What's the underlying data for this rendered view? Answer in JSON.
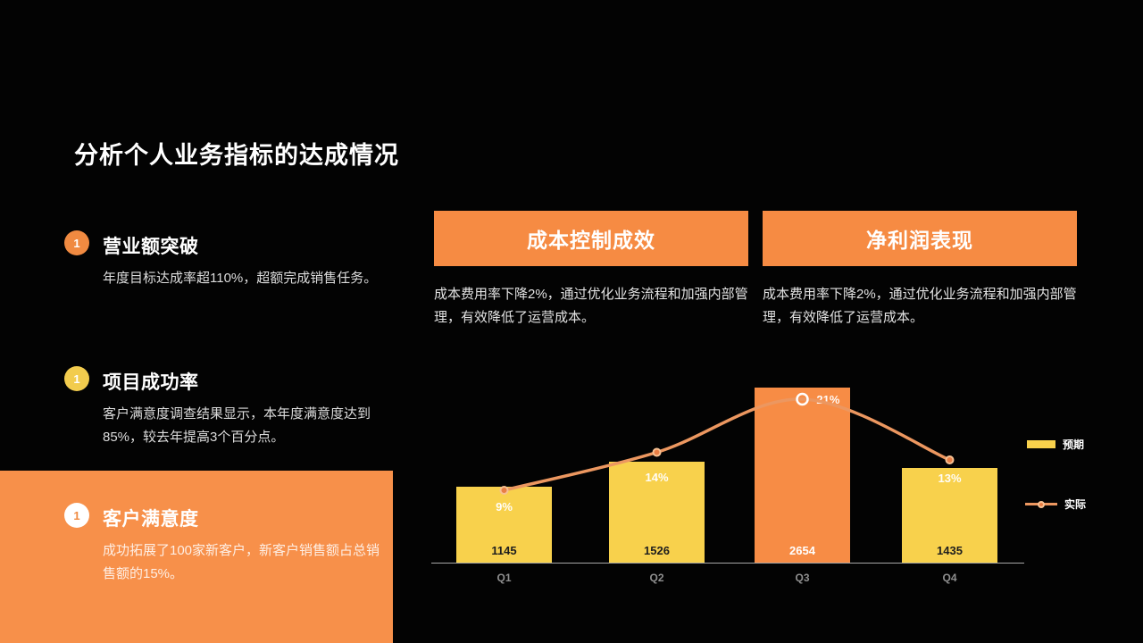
{
  "slide": {
    "title": "分析个人业务指标的达成情况"
  },
  "left_items": [
    {
      "num": "1",
      "title": "营业额突破",
      "body": "年度目标达成率超110%，超额完成销售任务。"
    },
    {
      "num": "1",
      "title": "项目成功率",
      "body": "客户满意度调查结果显示，本年度满意度达到85%，较去年提高3个百分点。"
    },
    {
      "num": "1",
      "title": "客户满意度",
      "body": "成功拓展了100家新客户，新客户销售额占总销售额的15%。"
    }
  ],
  "panels": [
    {
      "title": "成本控制成效",
      "desc": "成本费用率下降2%，通过优化业务流程和加强内部管理，有效降低了运营成本。"
    },
    {
      "title": "净利润表现",
      "desc": "成本费用率下降2%，通过优化业务流程和加强内部管理，有效降低了运营成本。"
    }
  ],
  "chart_data": {
    "type": "bar",
    "subtype": "bar-line-combo",
    "categories": [
      "Q1",
      "Q2",
      "Q3",
      "Q4"
    ],
    "series": [
      {
        "name": "预期",
        "type": "bar",
        "values": [
          1145,
          1526,
          2654,
          1435
        ]
      },
      {
        "name": "实际",
        "type": "line",
        "values": [
          9,
          14,
          21,
          13
        ],
        "unit": "%"
      }
    ],
    "bar_value_labels": [
      "1145",
      "1526",
      "2654",
      "1435"
    ],
    "line_point_labels": [
      "9%",
      "14%",
      "21%",
      "13%"
    ],
    "highlight_bar_index": 2,
    "legend": [
      {
        "label": "预期",
        "marker": "bar-swatch"
      },
      {
        "label": "实际",
        "marker": "line-dot"
      }
    ],
    "colors": {
      "bar": "#F8D14C",
      "bar_highlight": "#F78C45",
      "line": "#EC9760",
      "marker_fill": "#E87E45",
      "marker_stroke": "#F7C193",
      "axis": "#A6A6A6"
    },
    "grid": false,
    "legend_position": "right"
  }
}
